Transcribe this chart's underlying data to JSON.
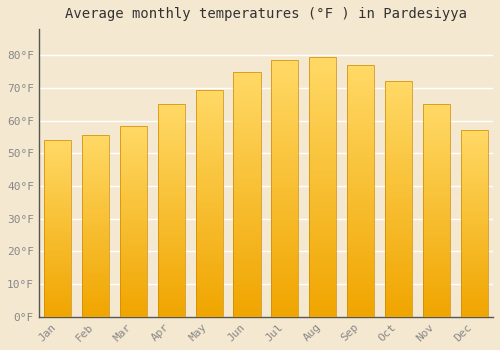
{
  "title": "Average monthly temperatures (°F ) in Pardesiyya",
  "months": [
    "Jan",
    "Feb",
    "Mar",
    "Apr",
    "May",
    "Jun",
    "Jul",
    "Aug",
    "Sep",
    "Oct",
    "Nov",
    "Dec"
  ],
  "values": [
    54,
    55.5,
    58.5,
    65,
    69.5,
    75,
    78.5,
    79.5,
    77,
    72,
    65,
    57
  ],
  "bar_color_top": "#FFD966",
  "bar_color_bottom": "#F0A500",
  "bar_edge_color": "#CC8800",
  "background_color": "#F5E8D0",
  "plot_bg_color": "#F5E8D0",
  "grid_color": "#FFFFFF",
  "tick_color": "#888888",
  "title_color": "#333333",
  "title_fontsize": 10,
  "tick_fontsize": 8,
  "ylim": [
    0,
    88
  ],
  "yticks": [
    0,
    10,
    20,
    30,
    40,
    50,
    60,
    70,
    80
  ],
  "ytick_labels": [
    "0°F",
    "10°F",
    "20°F",
    "30°F",
    "40°F",
    "50°F",
    "60°F",
    "70°F",
    "80°F"
  ]
}
